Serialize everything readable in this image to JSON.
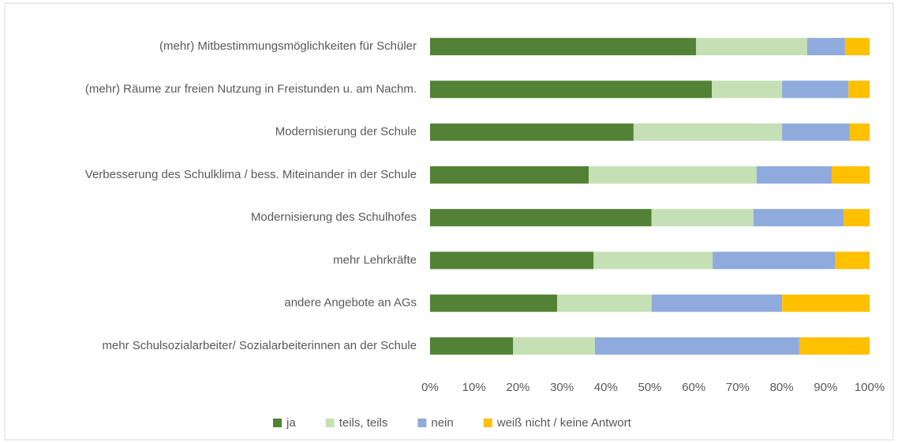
{
  "chart_data": {
    "type": "stacked-barh",
    "categories": [
      "(mehr) Mitbestimmungsmöglichkeiten für Schüler",
      "(mehr) Räume zur freien Nutzung in Freistunden u. am Nachm.",
      "Modernisierung der Schule",
      "Verbesserung des Schulklima / bess. Miteinander in der Schule",
      "Modernisierung des Schulhofes",
      "mehr Lehrkräfte",
      "andere Angebote an AGs",
      "mehr Schulsozialarbeiter/ Sozialarbeiterinnen an der Schule"
    ],
    "series": [
      {
        "name": "ja",
        "color": "#538135",
        "values": [
          60.5,
          64.1,
          46.3,
          36.1,
          50.4,
          37.2,
          28.9,
          18.9
        ]
      },
      {
        "name": "teils, teils",
        "color": "#c5e0b4",
        "values": [
          25.3,
          16.0,
          33.8,
          38.2,
          23.2,
          27.1,
          21.5,
          18.6
        ]
      },
      {
        "name": "nein",
        "color": "#8faadc",
        "values": [
          8.6,
          15.1,
          15.4,
          17.1,
          20.5,
          27.8,
          29.7,
          46.5
        ]
      },
      {
        "name": "weiß nicht / keine Antwort",
        "color": "#ffc000",
        "values": [
          5.6,
          4.8,
          4.5,
          8.6,
          5.9,
          7.9,
          19.9,
          16.0
        ]
      }
    ],
    "xlim": [
      0,
      100
    ],
    "xticks": [
      {
        "value": 0,
        "label": "0%"
      },
      {
        "value": 10,
        "label": "10%"
      },
      {
        "value": 20,
        "label": "20%"
      },
      {
        "value": 30,
        "label": "30%"
      },
      {
        "value": 40,
        "label": "40%"
      },
      {
        "value": 50,
        "label": "50%"
      },
      {
        "value": 60,
        "label": "60%"
      },
      {
        "value": 70,
        "label": "70%"
      },
      {
        "value": 80,
        "label": "80%"
      },
      {
        "value": 90,
        "label": "90%"
      },
      {
        "value": 100,
        "label": "100%"
      }
    ],
    "grid": false,
    "legend": "bottom"
  }
}
